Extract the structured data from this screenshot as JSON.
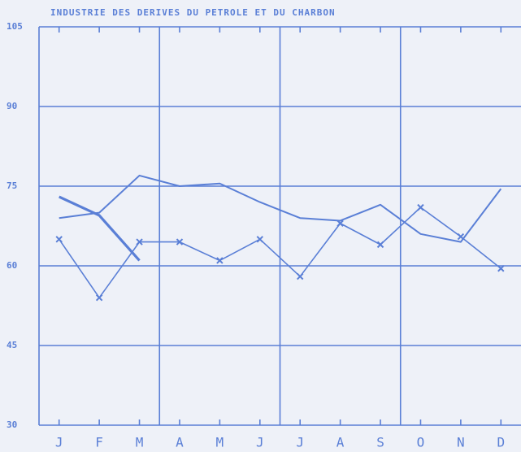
{
  "chart_data": {
    "type": "line",
    "title": "INDUSTRIE DES DERIVES DU PETROLE ET DU CHARBON",
    "categories": [
      "J",
      "F",
      "M",
      "A",
      "M",
      "J",
      "J",
      "A",
      "S",
      "O",
      "N",
      "D"
    ],
    "series": [
      {
        "color": "#5a7fd6",
        "marker": "x",
        "width": 1.6,
        "values": [
          65,
          54,
          64.5,
          64.5,
          61,
          65,
          58,
          68,
          64,
          71,
          65.5,
          59.5
        ]
      },
      {
        "color": "#5a7fd6",
        "width": 2,
        "values": [
          69,
          70,
          77,
          75,
          75.5,
          72,
          69,
          68.5,
          71.5,
          66,
          64.5,
          74.5
        ]
      },
      {
        "color": "#5a7fd6",
        "width": 3.2,
        "values": [
          73,
          69.5,
          61,
          null,
          null,
          null,
          null,
          null,
          null,
          null,
          null,
          null
        ]
      }
    ],
    "ylim": [
      30,
      105
    ],
    "yticks": [
      30,
      45,
      60,
      75,
      90,
      105
    ],
    "grid": true
  }
}
